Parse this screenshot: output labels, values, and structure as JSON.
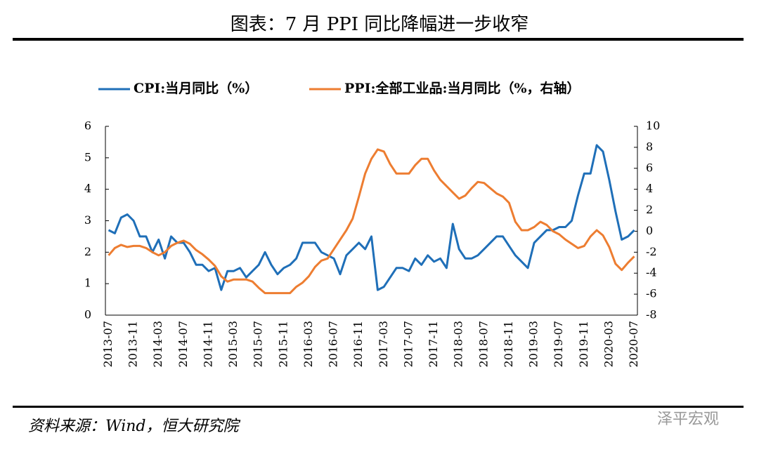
{
  "chart_data": {
    "type": "line",
    "title": "图表：7 月 PPI 同比降幅进一步收窄",
    "source": "资料来源：Wind，恒大研究院",
    "watermark": "泽平宏观",
    "categories": [
      "2013-07",
      null,
      null,
      null,
      "2013-11",
      null,
      null,
      null,
      "2014-03",
      null,
      null,
      null,
      "2014-07",
      null,
      null,
      null,
      "2014-11",
      null,
      null,
      null,
      "2015-03",
      null,
      null,
      null,
      "2015-07",
      null,
      null,
      null,
      "2015-11",
      null,
      null,
      null,
      "2016-03",
      null,
      null,
      null,
      "2016-07",
      null,
      null,
      null,
      "2016-11",
      null,
      null,
      null,
      "2017-03",
      null,
      null,
      null,
      "2017-07",
      null,
      null,
      null,
      "2017-11",
      null,
      null,
      null,
      "2018-03",
      null,
      null,
      null,
      "2018-07",
      null,
      null,
      null,
      "2018-11",
      null,
      null,
      null,
      "2019-03",
      null,
      null,
      null,
      "2019-07",
      null,
      null,
      null,
      "2019-11",
      null,
      null,
      null,
      "2020-03",
      null,
      null,
      null,
      "2020-07"
    ],
    "series": [
      {
        "name": "CPI:当月同比（%）",
        "color": "#1f6fb8",
        "axis": "y",
        "values": [
          2.7,
          2.6,
          3.1,
          3.2,
          3.0,
          2.5,
          2.5,
          2.0,
          2.4,
          1.8,
          2.5,
          2.3,
          2.3,
          2.0,
          1.6,
          1.6,
          1.4,
          1.5,
          0.8,
          1.4,
          1.4,
          1.5,
          1.2,
          1.4,
          1.6,
          2.0,
          1.6,
          1.3,
          1.5,
          1.6,
          1.8,
          2.3,
          2.3,
          2.3,
          2.0,
          1.9,
          1.8,
          1.3,
          1.9,
          2.1,
          2.3,
          2.1,
          2.5,
          0.8,
          0.9,
          1.2,
          1.5,
          1.5,
          1.4,
          1.8,
          1.6,
          1.9,
          1.7,
          1.8,
          1.5,
          2.9,
          2.1,
          1.8,
          1.8,
          1.9,
          2.1,
          2.3,
          2.5,
          2.5,
          2.2,
          1.9,
          1.7,
          1.5,
          2.3,
          2.5,
          2.7,
          2.7,
          2.8,
          2.8,
          3.0,
          3.8,
          4.5,
          4.5,
          5.4,
          5.2,
          4.3,
          3.3,
          2.4,
          2.5,
          2.7
        ]
      },
      {
        "name": "PPI:全部工业品:当月同比（%，右轴）",
        "color": "#ed7d31",
        "axis": "y2",
        "values": [
          -2.3,
          -1.6,
          -1.3,
          -1.5,
          -1.4,
          -1.4,
          -1.6,
          -2.0,
          -2.3,
          -2.0,
          -1.4,
          -1.1,
          -0.9,
          -1.2,
          -1.8,
          -2.2,
          -2.7,
          -3.3,
          -4.3,
          -4.8,
          -4.6,
          -4.6,
          -4.6,
          -4.8,
          -5.4,
          -5.9,
          -5.9,
          -5.9,
          -5.9,
          -5.9,
          -5.3,
          -4.9,
          -4.3,
          -3.4,
          -2.8,
          -2.6,
          -1.7,
          -0.8,
          0.1,
          1.2,
          3.3,
          5.5,
          6.9,
          7.8,
          7.6,
          6.4,
          5.5,
          5.5,
          5.5,
          6.3,
          6.9,
          6.9,
          5.8,
          4.9,
          4.3,
          3.7,
          3.1,
          3.4,
          4.1,
          4.7,
          4.6,
          4.1,
          3.6,
          3.3,
          2.7,
          0.9,
          0.1,
          0.1,
          0.4,
          0.9,
          0.6,
          0.0,
          -0.3,
          -0.8,
          -1.2,
          -1.6,
          -1.4,
          -0.5,
          0.1,
          -0.4,
          -1.5,
          -3.1,
          -3.7,
          -3.0,
          -2.4
        ]
      }
    ],
    "ylim": [
      0,
      6
    ],
    "yticks": [
      0,
      1,
      2,
      3,
      4,
      5,
      6
    ],
    "y2lim": [
      -8,
      10
    ],
    "y2ticks": [
      -8,
      -6,
      -4,
      -2,
      0,
      2,
      4,
      6,
      8,
      10
    ]
  }
}
